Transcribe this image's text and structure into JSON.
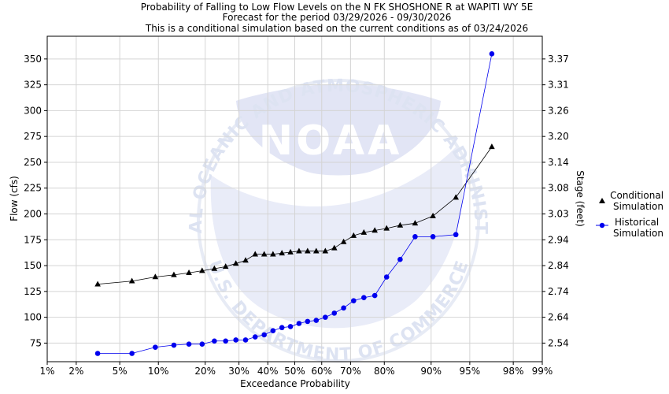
{
  "chart_data": {
    "type": "line",
    "title_lines": [
      "Probability of Falling to Low Flow Levels on the N FK SHOSHONE R at WAPITI WY 5E",
      "Forecast for the period 03/29/2026 - 09/30/2026",
      "This is a conditional simulation based on the current conditions as of 03/24/2026"
    ],
    "xlabel": "Exceedance Probability",
    "ylabel": "Flow (cfs)",
    "y2label": "Stage (feet)",
    "x_scale": "normal-probability",
    "x_ticks": [
      1,
      2,
      5,
      10,
      20,
      30,
      40,
      50,
      60,
      70,
      80,
      90,
      95,
      98,
      99
    ],
    "x_tick_labels": [
      "1%",
      "2%",
      "5%",
      "10%",
      "20%",
      "30%",
      "40%",
      "50%",
      "60%",
      "70%",
      "80%",
      "90%",
      "95%",
      "98%",
      "99%"
    ],
    "ylim": [
      57,
      372
    ],
    "y_ticks": [
      75,
      100,
      125,
      150,
      175,
      200,
      225,
      250,
      275,
      300,
      325,
      350
    ],
    "y2_ticks": [
      {
        "flow": 75,
        "label": "2.54"
      },
      {
        "flow": 100,
        "label": "2.64"
      },
      {
        "flow": 125,
        "label": "2.74"
      },
      {
        "flow": 150,
        "label": "2.84"
      },
      {
        "flow": 175,
        "label": "2.94"
      },
      {
        "flow": 200,
        "label": "3.03"
      },
      {
        "flow": 225,
        "label": "3.08"
      },
      {
        "flow": 250,
        "label": "3.14"
      },
      {
        "flow": 275,
        "label": "3.20"
      },
      {
        "flow": 300,
        "label": "3.26"
      },
      {
        "flow": 325,
        "label": "3.31"
      },
      {
        "flow": 350,
        "label": "3.37"
      }
    ],
    "series": [
      {
        "name": "Conditional Simulation",
        "marker": "triangle",
        "color": "#000000",
        "x": [
          3.2,
          6.3,
          9.5,
          12.8,
          16.0,
          19.2,
          22.5,
          25.8,
          29.0,
          32.2,
          35.5,
          38.7,
          41.9,
          45.2,
          48.4,
          51.6,
          54.8,
          58.0,
          61.3,
          64.5,
          67.7,
          71.0,
          74.2,
          77.4,
          80.6,
          83.9,
          87.1,
          90.3,
          93.5,
          96.8
        ],
        "values": [
          132,
          135,
          139,
          141,
          143,
          145,
          147,
          149,
          152,
          155,
          161,
          161,
          161,
          162,
          163,
          164,
          164,
          164,
          164,
          167,
          173,
          179,
          182,
          184,
          186,
          189,
          191,
          198,
          216,
          265
        ]
      },
      {
        "name": "Historical Simulation",
        "marker": "circle",
        "color": "#0000ee",
        "x": [
          3.2,
          6.3,
          9.5,
          12.8,
          16.0,
          19.2,
          22.5,
          25.8,
          29.0,
          32.2,
          35.5,
          38.7,
          41.9,
          45.2,
          48.4,
          51.6,
          54.8,
          58.0,
          61.3,
          64.5,
          67.7,
          71.0,
          74.2,
          77.4,
          80.6,
          83.9,
          87.1,
          90.3,
          93.5,
          96.8
        ],
        "values": [
          65,
          65,
          71,
          73,
          74,
          74,
          77,
          77,
          78,
          78,
          81,
          83,
          87,
          90,
          91,
          94,
          96,
          97,
          100,
          104,
          109,
          116,
          119,
          121,
          139,
          156,
          178,
          178,
          180,
          355
        ]
      }
    ],
    "legend_position": "right",
    "watermark": {
      "logo_text": "NOAA",
      "ring_text_top": "NATIONAL OCEANIC AND ATMOSPHERIC ADMINISTRATION",
      "ring_text_bottom": "U.S. DEPARTMENT OF COMMERCE"
    }
  }
}
